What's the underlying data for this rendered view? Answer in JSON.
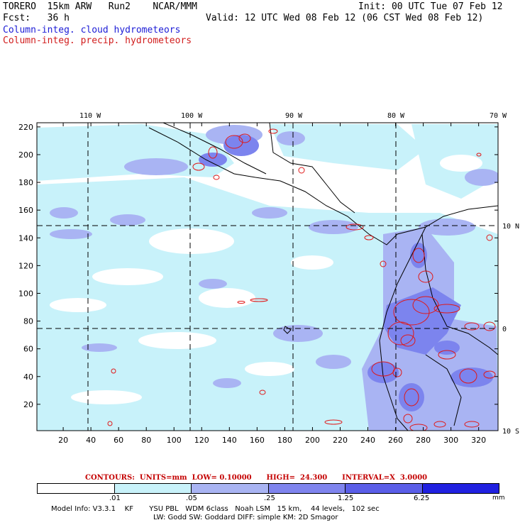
{
  "header": {
    "model_line": "TORERO  15km ARW   Run2    NCAR/MMM",
    "init": "Init: 00 UTC Tue 07 Feb 12",
    "fcst": "Fcst:   36 h",
    "valid": "Valid: 12 UTC Wed 08 Feb 12 (06 CST Wed 08 Feb 12)",
    "field1": "Column-integ. cloud hydrometeors",
    "field2": "Column-integ. precip. hydrometeors"
  },
  "map": {
    "lon_labels": [
      "110 W",
      "100 W",
      "90 W",
      "80 W",
      "70 W"
    ],
    "lat_labels": [
      "10 N",
      "0",
      "10 S"
    ],
    "y_ticks": [
      "220",
      "200",
      "180",
      "160",
      "140",
      "120",
      "100",
      "80",
      "60",
      "40",
      "20"
    ],
    "x_ticks": [
      "20",
      "40",
      "60",
      "80",
      "100",
      "120",
      "140",
      "160",
      "180",
      "200",
      "220",
      "240",
      "260",
      "280",
      "300",
      "320"
    ],
    "colors": {
      "light": "#c8f2fa",
      "medium": "#a9b4f3",
      "dark": "#7c84ee",
      "precip_contour": "#e01818"
    }
  },
  "contours_text": "CONTOURS:  UNITS=mm  LOW= 0.10000      HIGH=  24.300      INTERVAL=X  3.0000",
  "legend": {
    "ticks": [
      ".01",
      ".05",
      ".25",
      "1.25",
      "6.25"
    ],
    "units": "mm",
    "colors": [
      "#ffffff",
      "#c8f2fa",
      "#a4ecf5",
      "#a9b4f3",
      "#7f84ee",
      "#5a5ee8",
      "#2020e0"
    ]
  },
  "model_info": {
    "line1": "Model Info: V3.3.1    KF       YSU PBL   WDM 6class   Noah LSM   15 km,    44 levels,   102 sec",
    "line2": "LW: Godd SW: Goddard DIFF: simple KM: 2D Smagor"
  }
}
